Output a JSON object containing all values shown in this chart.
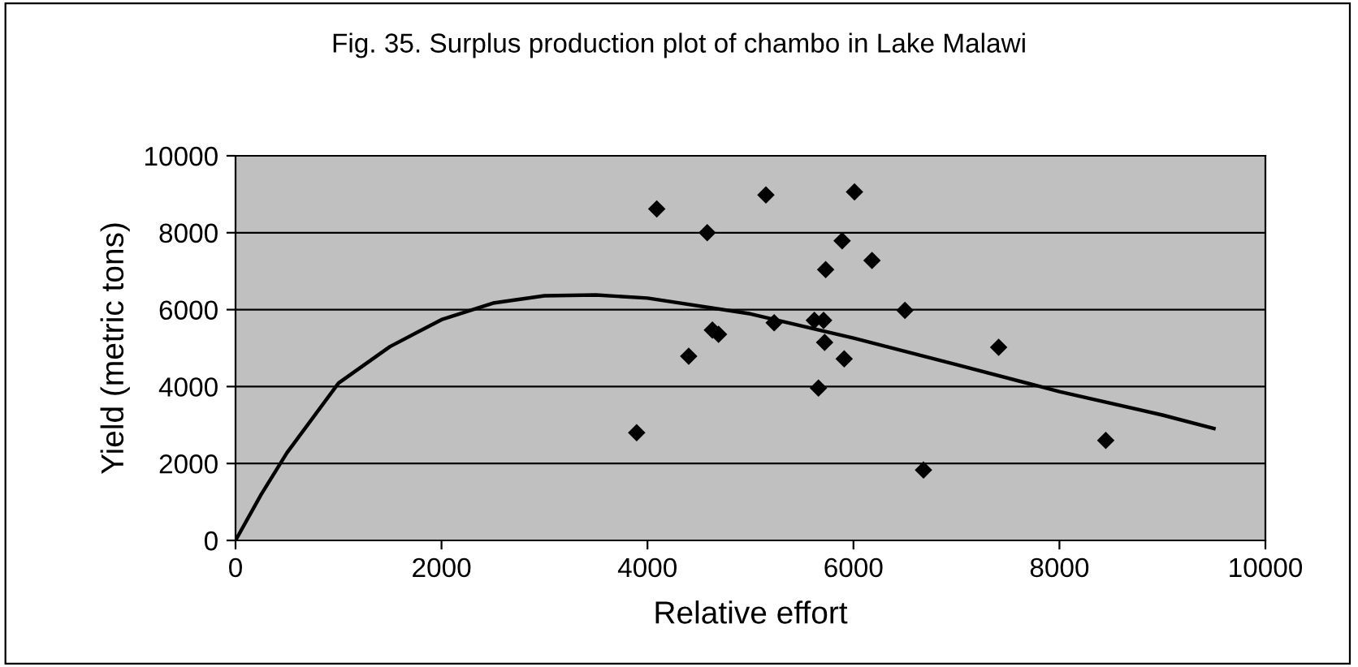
{
  "chart_data": {
    "type": "scatter",
    "title": "Fig. 35. Surplus production plot of chambo in Lake Malawi",
    "xlabel": "Relative effort",
    "ylabel": "Yield (metric tons)",
    "xlim": [
      0,
      10000
    ],
    "xticks": [
      0,
      2000,
      4000,
      6000,
      8000,
      10000
    ],
    "ylim": [
      0,
      10000
    ],
    "yticks": [
      0,
      2000,
      4000,
      6000,
      8000,
      10000
    ],
    "grid": "y",
    "series": [
      {
        "marker": "diamond",
        "color": "#000000",
        "x": [
          3895,
          4090,
          4580,
          4400,
          4630,
          4690,
          5150,
          5230,
          5620,
          5710,
          5720,
          5660,
          5730,
          5890,
          5910,
          6010,
          6180,
          6500,
          6680,
          7410,
          8450
        ],
        "values": [
          2800,
          8620,
          8000,
          4790,
          5470,
          5360,
          8980,
          5660,
          5720,
          5720,
          5150,
          3960,
          7040,
          7790,
          4720,
          9060,
          7280,
          5980,
          1830,
          5020,
          2600
        ]
      },
      {
        "type": "line",
        "marker": "none",
        "color": "#000000",
        "x": [
          0,
          250,
          500,
          1000,
          1500,
          2000,
          2500,
          3000,
          3500,
          4000,
          5000,
          6000,
          7000,
          8000,
          9000,
          9500
        ],
        "values": [
          0,
          1200,
          2280,
          4090,
          5040,
          5740,
          6170,
          6360,
          6380,
          6300,
          5890,
          5260,
          4570,
          3870,
          3260,
          2910
        ]
      }
    ]
  }
}
